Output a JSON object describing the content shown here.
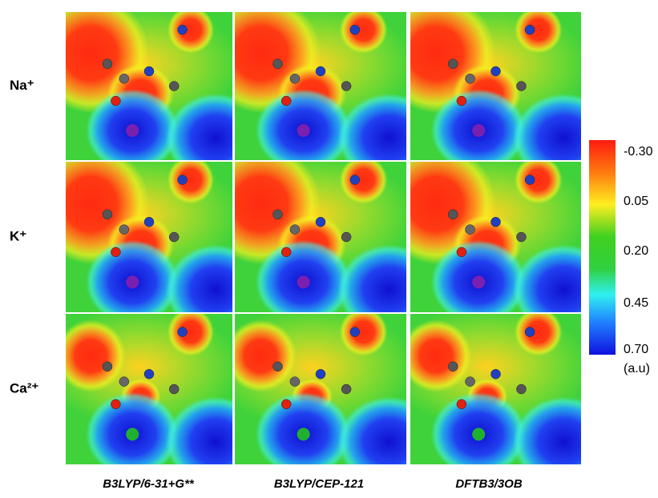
{
  "rows": [
    "Na⁺",
    "K⁺",
    "Ca²⁺"
  ],
  "columns": [
    "B3LYP/6-31+G**",
    "B3LYP/CEP-121",
    "DFTB3/3OB"
  ],
  "colorbar": {
    "ticks": [
      "-0.30",
      "0.05",
      "0.20",
      "0.45",
      "0.70"
    ],
    "unit": "(a.u)"
  }
}
